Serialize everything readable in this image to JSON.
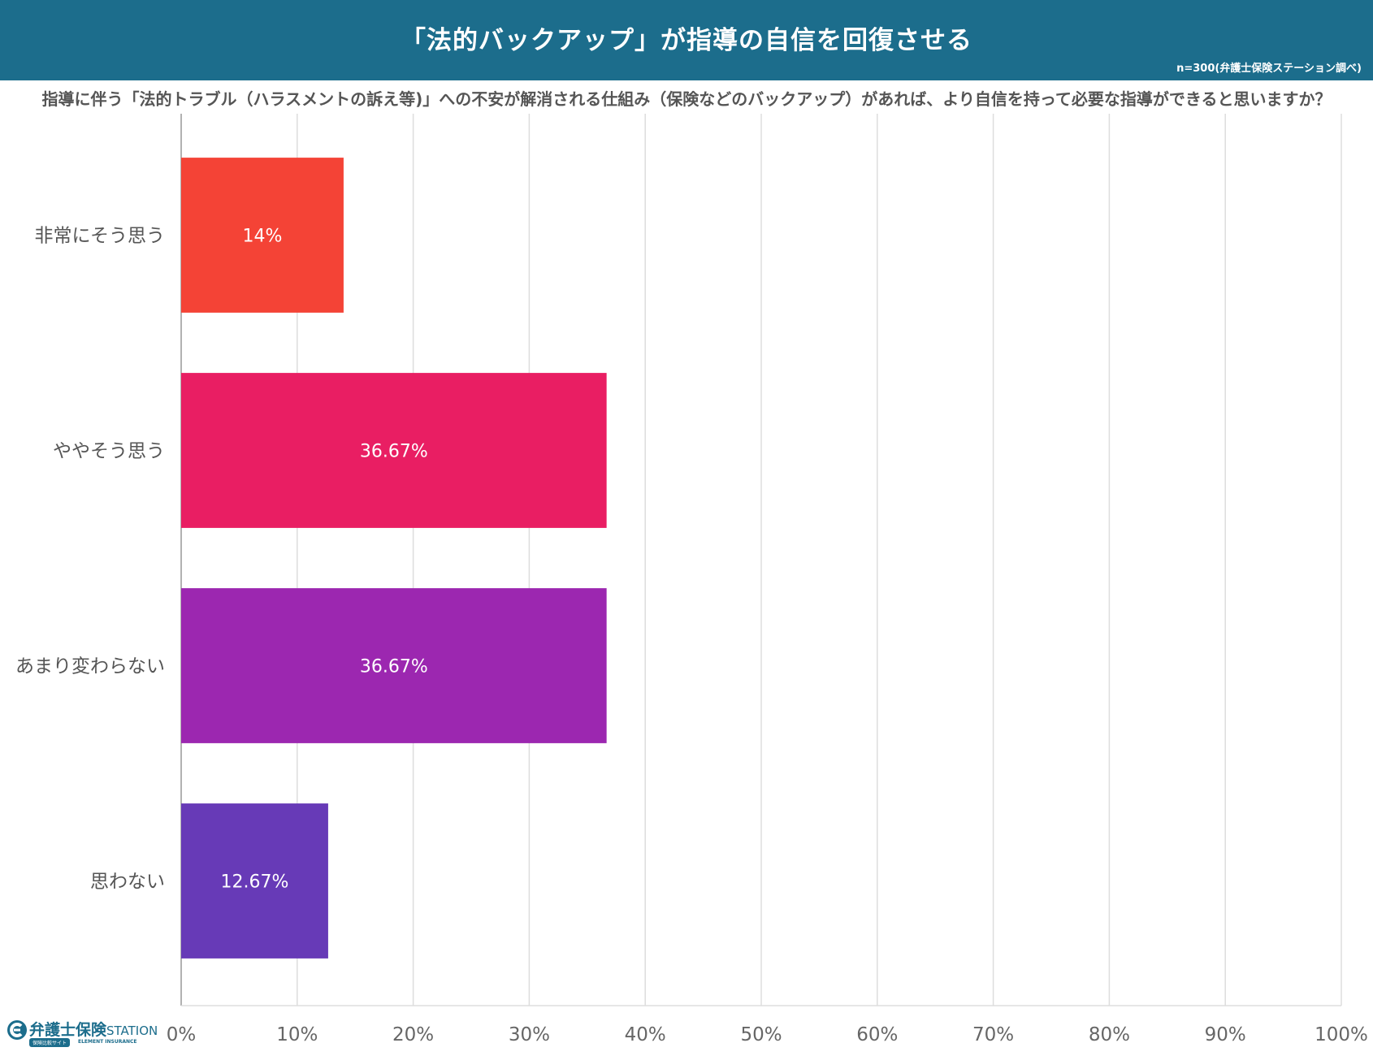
{
  "header": {
    "title": "「法的バックアップ」が指導の自信を回復させる",
    "sample_note": "n=300(弁護士保険ステーション調べ)"
  },
  "question": "指導に伴う「法的トラブル（ハラスメントの訴え等)」への不安が解消される仕組み（保険などのバックアップ）があれば、より自信を持って必要な指導ができると思いますか？",
  "chart_data": {
    "type": "bar",
    "orientation": "horizontal",
    "categories": [
      "非常にそう思う",
      "ややそう思う",
      "あまり変わらない",
      "思わない"
    ],
    "values": [
      14,
      36.67,
      36.67,
      12.67
    ],
    "value_labels": [
      "14%",
      "36.67%",
      "36.67%",
      "12.67%"
    ],
    "colors": [
      "#f44336",
      "#e91e63",
      "#9c27b0",
      "#673ab7"
    ],
    "xlim": [
      0,
      100
    ],
    "xticks": [
      0,
      10,
      20,
      30,
      40,
      50,
      60,
      70,
      80,
      90,
      100
    ],
    "xtick_labels": [
      "0%",
      "10%",
      "20%",
      "30%",
      "40%",
      "50%",
      "60%",
      "70%",
      "80%",
      "90%",
      "100%"
    ],
    "grid": true,
    "title": "「法的バックアップ」が指導の自信を回復させる"
  },
  "logo": {
    "name": "弁護士保険",
    "station": "STATION",
    "tag": "保険比較サイト",
    "sub": "ELEMENT INSURANCE"
  },
  "colors": {
    "header_bg": "#1c6d8c",
    "grid": "#dddddd",
    "axis": "#999999"
  }
}
